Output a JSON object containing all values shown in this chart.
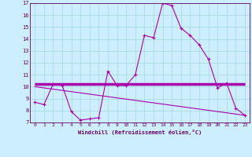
{
  "xlabel": "Windchill (Refroidissement éolien,°C)",
  "bg_color": "#cceeff",
  "grid_color": "#aadddd",
  "line_color": "#aa00aa",
  "xlim": [
    -0.5,
    23.5
  ],
  "ylim": [
    7,
    17
  ],
  "yticks": [
    7,
    8,
    9,
    10,
    11,
    12,
    13,
    14,
    15,
    16,
    17
  ],
  "xticks": [
    0,
    1,
    2,
    3,
    4,
    5,
    6,
    7,
    8,
    9,
    10,
    11,
    12,
    13,
    14,
    15,
    16,
    17,
    18,
    19,
    20,
    21,
    22,
    23
  ],
  "curve1_x": [
    0,
    1,
    2,
    3,
    4,
    5,
    6,
    7,
    8,
    9,
    10,
    11,
    12,
    13,
    14,
    15,
    16,
    17,
    18,
    19,
    20,
    21,
    22,
    23
  ],
  "curve1_y": [
    8.7,
    8.5,
    10.2,
    10.1,
    7.9,
    7.2,
    7.3,
    7.4,
    11.3,
    10.1,
    10.1,
    11.0,
    14.3,
    14.1,
    17.0,
    16.8,
    14.9,
    14.3,
    13.5,
    12.3,
    9.9,
    10.3,
    8.2,
    7.6
  ],
  "line2_x": [
    0,
    23
  ],
  "line2_y": [
    10.2,
    10.2
  ],
  "line3_x": [
    0,
    23
  ],
  "line3_y": [
    10.0,
    7.6
  ],
  "font_color": "#660066"
}
